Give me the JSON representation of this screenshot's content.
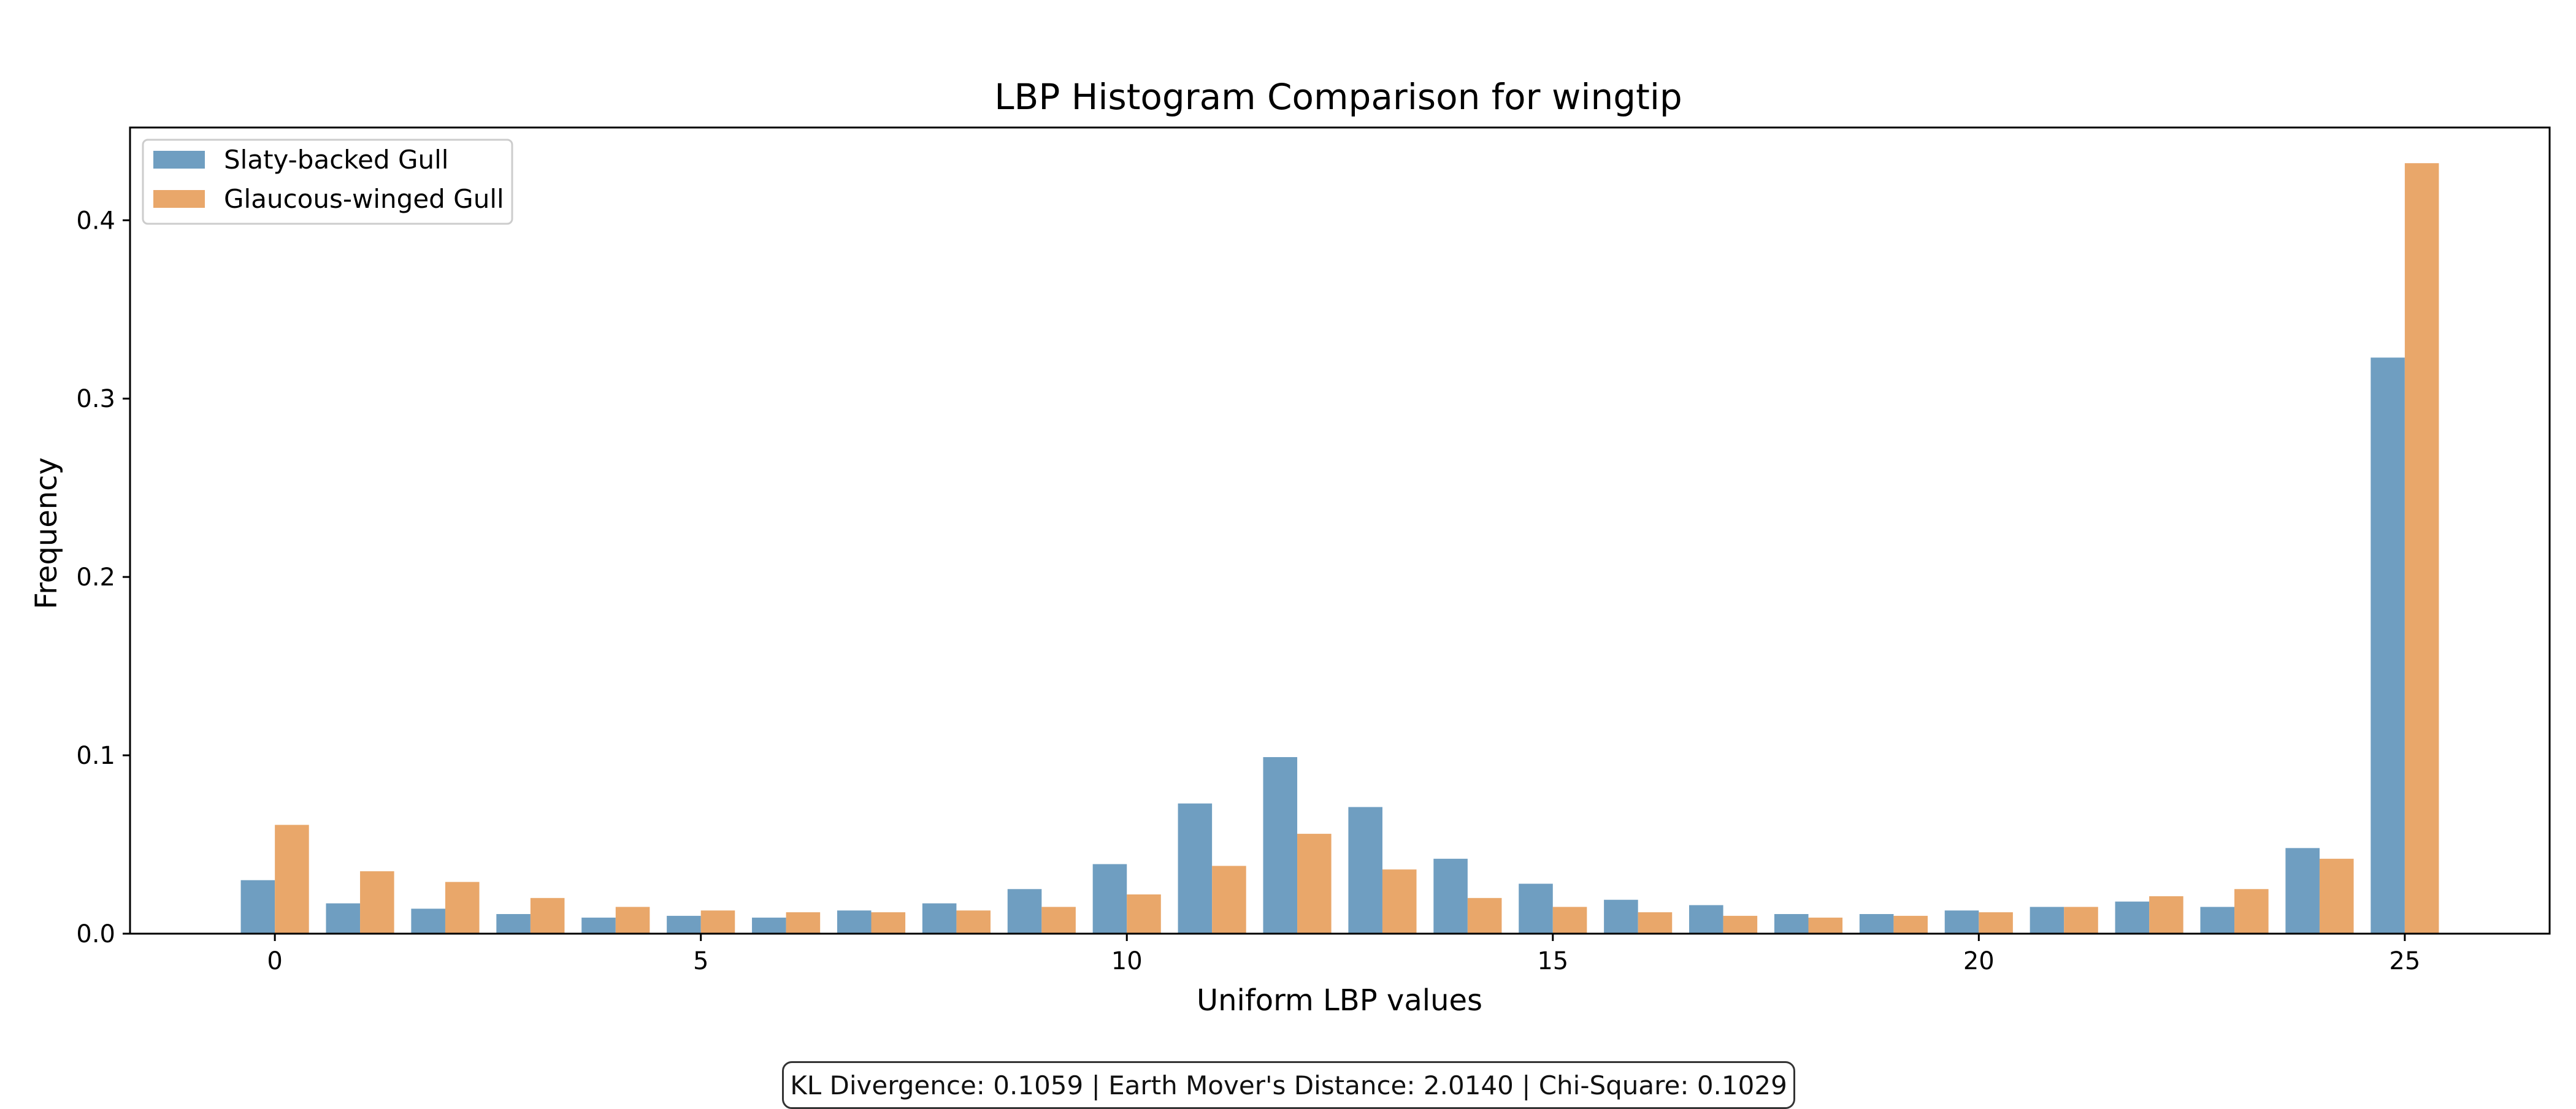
{
  "chart_data": {
    "type": "bar",
    "title": "LBP Histogram Comparison for wingtip",
    "xlabel": "Uniform LBP values",
    "ylabel": "Frequency",
    "x": [
      0,
      1,
      2,
      3,
      4,
      5,
      6,
      7,
      8,
      9,
      10,
      11,
      12,
      13,
      14,
      15,
      16,
      17,
      18,
      19,
      20,
      21,
      22,
      23,
      24,
      25
    ],
    "xlim": [
      -1.7,
      26.7
    ],
    "ylim": [
      0,
      0.452
    ],
    "xticks": [
      "0",
      "5",
      "10",
      "15",
      "20",
      "25"
    ],
    "yticks": [
      "0.0",
      "0.1",
      "0.2",
      "0.3",
      "0.4"
    ],
    "grid": false,
    "legend_position": "top-left",
    "series": [
      {
        "name": "Slaty-backed Gull",
        "color": "#6f9ec1",
        "values": [
          0.03,
          0.017,
          0.014,
          0.011,
          0.009,
          0.01,
          0.009,
          0.013,
          0.017,
          0.025,
          0.039,
          0.073,
          0.099,
          0.071,
          0.042,
          0.028,
          0.019,
          0.016,
          0.011,
          0.011,
          0.013,
          0.015,
          0.018,
          0.015,
          0.048,
          0.323
        ]
      },
      {
        "name": "Glaucous-winged Gull",
        "color": "#e9a76a",
        "values": [
          0.061,
          0.035,
          0.029,
          0.02,
          0.015,
          0.013,
          0.012,
          0.012,
          0.013,
          0.015,
          0.022,
          0.038,
          0.056,
          0.036,
          0.02,
          0.015,
          0.012,
          0.01,
          0.009,
          0.01,
          0.012,
          0.015,
          0.021,
          0.025,
          0.042,
          0.432
        ]
      }
    ]
  },
  "stats_text": "KL Divergence: 0.1059 | Earth Mover's Distance: 2.0140 | Chi-Square: 0.1029"
}
